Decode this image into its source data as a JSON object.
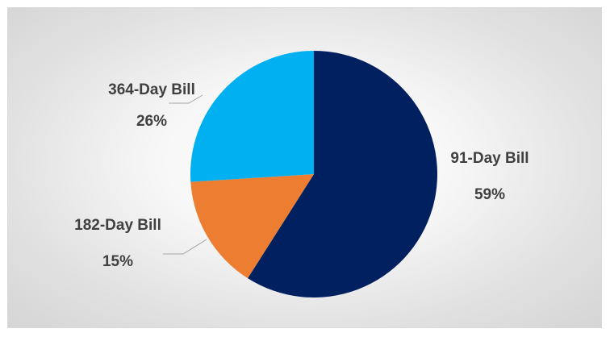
{
  "chart_data": {
    "type": "pie",
    "title": "",
    "slices": [
      {
        "label": "91-Day Bill",
        "value": 59,
        "value_text": "59%",
        "color": "#002060"
      },
      {
        "label": "182-Day Bill",
        "value": 15,
        "value_text": "15%",
        "color": "#ED7D31"
      },
      {
        "label": "364-Day Bill",
        "value": 26,
        "value_text": "26%",
        "color": "#00B0F0"
      }
    ],
    "data_labels": "category and percentage, outside with leader lines",
    "legend": "none"
  }
}
